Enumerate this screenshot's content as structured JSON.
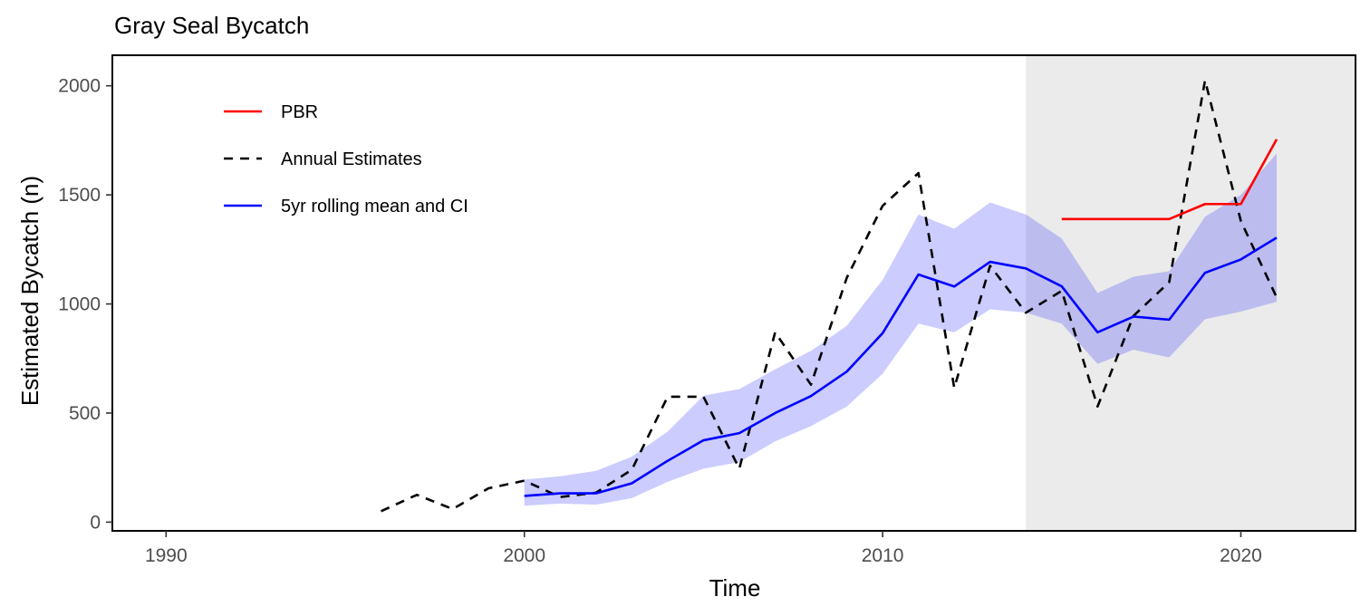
{
  "chart_data": {
    "type": "line",
    "title": "Gray Seal Bycatch",
    "xlabel": "Time",
    "ylabel": "Estimated Bycatch (n)",
    "xlim": [
      1988.5,
      2023.2
    ],
    "ylim": [
      -40,
      2140
    ],
    "x_ticks": [
      1990,
      2000,
      2010,
      2020
    ],
    "y_ticks": [
      0,
      500,
      1000,
      1500,
      2000
    ],
    "grid": false,
    "legend_position": "top-left",
    "shaded_region": {
      "x_from": 2014,
      "x_to": 2023.2,
      "color": "#ebebeb"
    },
    "series": [
      {
        "name": "PBR",
        "style": "solid",
        "color": "#ff0000",
        "x": [
          2015,
          2016,
          2017,
          2018,
          2019,
          2020,
          2021
        ],
        "y": [
          1389,
          1389,
          1389,
          1389,
          1458,
          1458,
          1755
        ]
      },
      {
        "name": "Annual Estimates",
        "style": "dashed",
        "color": "#000000",
        "x": [
          1996,
          1997,
          1998,
          1999,
          2000,
          2001,
          2002,
          2003,
          2004,
          2005,
          2006,
          2007,
          2008,
          2009,
          2010,
          2011,
          2012,
          2013,
          2014,
          2015,
          2016,
          2017,
          2018,
          2019,
          2020,
          2021
        ],
        "y": [
          50,
          125,
          60,
          155,
          190,
          115,
          135,
          240,
          575,
          575,
          245,
          870,
          630,
          1120,
          1450,
          1600,
          615,
          1175,
          960,
          1060,
          530,
          945,
          1100,
          2025,
          1380,
          1030
        ]
      },
      {
        "name": "5yr rolling mean and CI",
        "style": "solid",
        "color": "#0000ff",
        "x": [
          2000,
          2001,
          2002,
          2003,
          2004,
          2005,
          2006,
          2007,
          2008,
          2009,
          2010,
          2011,
          2012,
          2013,
          2014,
          2015,
          2016,
          2017,
          2018,
          2019,
          2020,
          2021
        ],
        "y": [
          120,
          132,
          132,
          178,
          281,
          375,
          408,
          500,
          578,
          690,
          866,
          1135,
          1080,
          1193,
          1163,
          1081,
          870,
          942,
          928,
          1143,
          1204,
          1304
        ],
        "ci_lower": [
          75,
          85,
          80,
          110,
          185,
          245,
          275,
          370,
          440,
          530,
          680,
          910,
          870,
          975,
          960,
          910,
          725,
          790,
          755,
          930,
          965,
          1010
        ],
        "ci_upper": [
          195,
          210,
          235,
          300,
          415,
          580,
          610,
          700,
          785,
          900,
          1110,
          1410,
          1345,
          1465,
          1410,
          1300,
          1050,
          1125,
          1150,
          1400,
          1500,
          1690
        ],
        "ci_color": "#ccccff"
      }
    ]
  }
}
